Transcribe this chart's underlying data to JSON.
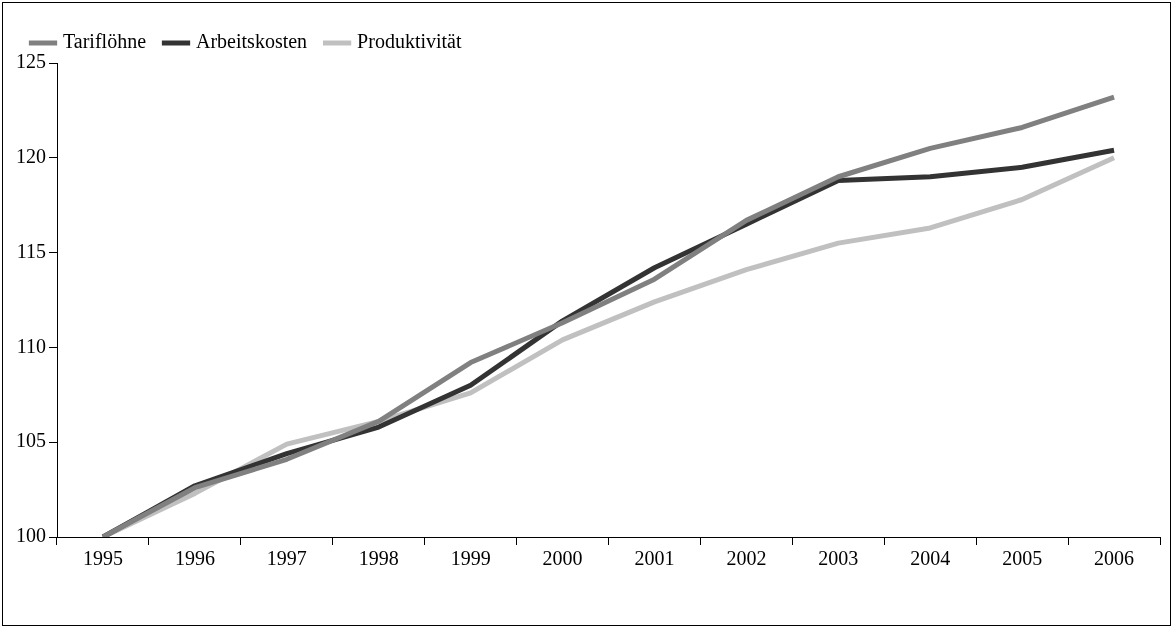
{
  "chart_data": {
    "type": "line",
    "categories": [
      "1995",
      "1996",
      "1997",
      "1998",
      "1999",
      "2000",
      "2001",
      "2002",
      "2003",
      "2004",
      "2005",
      "2006"
    ],
    "series": [
      {
        "name": "Tariflöhne",
        "color": "#808080",
        "values": [
          100,
          102.6,
          104.1,
          106.1,
          109.2,
          111.3,
          113.6,
          116.7,
          119.0,
          120.5,
          121.6,
          123.2
        ]
      },
      {
        "name": "Arbeitskosten",
        "color": "#333333",
        "values": [
          100,
          102.7,
          104.4,
          105.8,
          108.0,
          111.4,
          114.2,
          116.5,
          118.8,
          119.0,
          119.5,
          120.4
        ]
      },
      {
        "name": "Produktivität",
        "color": "#c0c0c0",
        "values": [
          100,
          102.3,
          104.9,
          106.1,
          107.6,
          110.4,
          112.4,
          114.1,
          115.5,
          116.3,
          117.8,
          120.0
        ]
      }
    ],
    "ylim": [
      100,
      125
    ],
    "yticks": [
      100,
      105,
      110,
      115,
      120,
      125
    ],
    "grid": false,
    "legend": "top left",
    "marker": "none",
    "line_style": "solid"
  }
}
